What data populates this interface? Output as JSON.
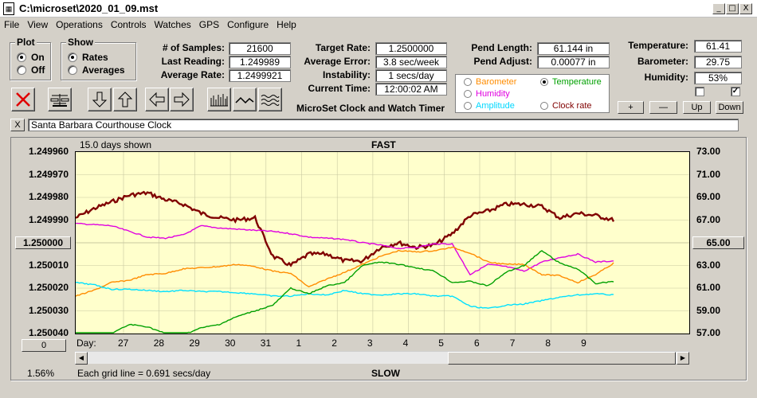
{
  "window": {
    "title": "C:\\microset\\2020_01_09.mst",
    "minimize": "_",
    "maximize": "□",
    "close": "X"
  },
  "menu": [
    "File",
    "View",
    "Operations",
    "Controls",
    "Watches",
    "GPS",
    "Configure",
    "Help"
  ],
  "plot_group": {
    "title": "Plot",
    "on_label": "On",
    "off_label": "Off",
    "selected": "On"
  },
  "show_group": {
    "title": "Show",
    "rates_label": "Rates",
    "averages_label": "Averages",
    "selected": "Rates"
  },
  "stats": {
    "samples_label": "# of Samples:",
    "samples_value": "21600",
    "last_reading_label": "Last Reading:",
    "last_reading_value": "1.249989",
    "average_rate_label": "Average Rate:",
    "average_rate_value": "1.2499921",
    "target_rate_label": "Target Rate:",
    "target_rate_value": "1.2500000",
    "average_error_label": "Average Error:",
    "average_error_value": "3.8 sec/week",
    "instability_label": "Instability:",
    "instability_value": "1 secs/day",
    "current_time_label": "Current Time:",
    "current_time_value": "12:00:02 AM",
    "pend_length_label": "Pend Length:",
    "pend_length_value": "61.144 in",
    "pend_adjust_label": "Pend Adjust:",
    "pend_adjust_value": "0.00077 in",
    "temperature_label": "Temperature:",
    "temperature_value": "61.41",
    "barometer_label": "Barometer:",
    "barometer_value": "29.75",
    "humidity_label": "Humidity:",
    "humidity_value": "53%"
  },
  "app_caption": "MicroSet Clock and Watch Timer",
  "legend": {
    "barometer": "Barometer",
    "humidity": "Humidity",
    "amplitude": "Amplitude",
    "temperature": "Temperature",
    "clock_rate": "Clock rate",
    "selected": "Temperature"
  },
  "colors": {
    "barometer": "#ff8c00",
    "humidity": "#e000e0",
    "amplitude": "#00e0ff",
    "temperature": "#00a000",
    "clock_rate": "#800000",
    "plot_bg": "#ffffcc"
  },
  "adjust_buttons": {
    "plus": "+",
    "minus": "—",
    "up": "Up",
    "down": "Down"
  },
  "toolbar_icons": [
    "close-red-x-icon",
    "balance-scale-icon",
    "arrow-down-icon",
    "arrow-up-icon",
    "arrow-left-icon",
    "arrow-right-icon",
    "bar-graph-icon",
    "line-graph-icon",
    "wave-graph-icon"
  ],
  "clock_name": {
    "close": "X",
    "value": "Santa Barbara Courthouse Clock"
  },
  "chart": {
    "days_shown": "15.0 days shown",
    "top_label": "FAST",
    "bottom_label": "SLOW",
    "left_button": "1.250000",
    "right_button": "65.00",
    "zero_button": "0",
    "percent": "1.56%",
    "grid_note": "Each grid line = 0.691 secs/day",
    "day_label": "Day:",
    "left_ticks": [
      "1.249960",
      "1.249970",
      "1.249980",
      "1.249990",
      "1.250010",
      "1.250020",
      "1.250030",
      "1.250040"
    ],
    "right_ticks": [
      "73.00",
      "71.00",
      "69.00",
      "67.00",
      "63.00",
      "61.00",
      "59.00",
      "57.00"
    ],
    "x_ticks": [
      "27",
      "28",
      "29",
      "30",
      "31",
      "1",
      "2",
      "3",
      "4",
      "5",
      "6",
      "7",
      "8",
      "9"
    ]
  },
  "chart_data": {
    "type": "line",
    "title": "FAST",
    "x_days": [
      0,
      0.5,
      1,
      1.5,
      2,
      2.5,
      3,
      3.5,
      4,
      4.5,
      5,
      5.5,
      6,
      6.5,
      7,
      7.5,
      8,
      8.5,
      9,
      9.5,
      10,
      10.5,
      11,
      11.5,
      12,
      12.5,
      13,
      13.5,
      14,
      14.5,
      15
    ],
    "ylim_left": [
      1.25004,
      1.24996
    ],
    "ylim_right": [
      57,
      73
    ],
    "series": [
      {
        "name": "Clock rate",
        "axis": "left",
        "values": [
          1.249989,
          1.249985,
          1.249982,
          1.249979,
          1.249978,
          1.249981,
          1.249983,
          1.249987,
          1.249989,
          1.24999,
          1.249989,
          1.250006,
          1.25001,
          1.250005,
          1.250005,
          1.250008,
          1.250008,
          1.250002,
          1.25,
          1.250002,
          1.250001,
          1.249996,
          1.249988,
          1.249986,
          1.249983,
          1.249983,
          1.249984,
          1.249989,
          1.249987,
          1.249988,
          1.24999
        ]
      },
      {
        "name": "Humidity",
        "axis": "right",
        "values": [
          66.7,
          66.6,
          66.5,
          66.0,
          65.5,
          65.4,
          65.7,
          66.5,
          66.3,
          66.2,
          66.1,
          66.0,
          65.8,
          65.5,
          65.4,
          65.3,
          65.0,
          64.8,
          64.5,
          64.6,
          64.9,
          64.9,
          62.2,
          63.1,
          62.9,
          62.5,
          63.3,
          63.7,
          64.0,
          63.3,
          63.4
        ]
      },
      {
        "name": "Barometer",
        "axis": "right",
        "values": [
          60.3,
          60.8,
          61.5,
          61.7,
          62.2,
          62.3,
          62.7,
          62.8,
          62.9,
          63.1,
          62.9,
          62.5,
          62.3,
          61.1,
          61.8,
          62.4,
          63.1,
          63.8,
          64.3,
          64.2,
          64.3,
          64.6,
          64.1,
          63.3,
          63.1,
          63.1,
          62.2,
          62.1,
          61.5,
          62.2,
          63.2
        ]
      },
      {
        "name": "Amplitude",
        "axis": "right",
        "values": [
          61.5,
          61.3,
          60.9,
          60.9,
          60.8,
          60.7,
          60.8,
          60.7,
          60.7,
          60.6,
          60.5,
          60.3,
          60.3,
          60.5,
          60.4,
          60.8,
          60.5,
          60.4,
          60.5,
          60.5,
          60.3,
          60.3,
          59.4,
          59.2,
          59.5,
          59.6,
          59.9,
          60.2,
          60.4,
          60.5,
          60.4
        ]
      },
      {
        "name": "Temperature",
        "axis": "right",
        "values": [
          57.0,
          57.0,
          57.0,
          57.8,
          57.6,
          57.0,
          56.9,
          57.5,
          57.8,
          58.5,
          59.0,
          59.5,
          61.0,
          60.5,
          61.2,
          61.5,
          63.0,
          63.3,
          63.1,
          62.8,
          62.5,
          61.5,
          61.6,
          61.2,
          62.4,
          63.0,
          64.3,
          63.2,
          62.7,
          61.4,
          61.6
        ]
      }
    ]
  }
}
